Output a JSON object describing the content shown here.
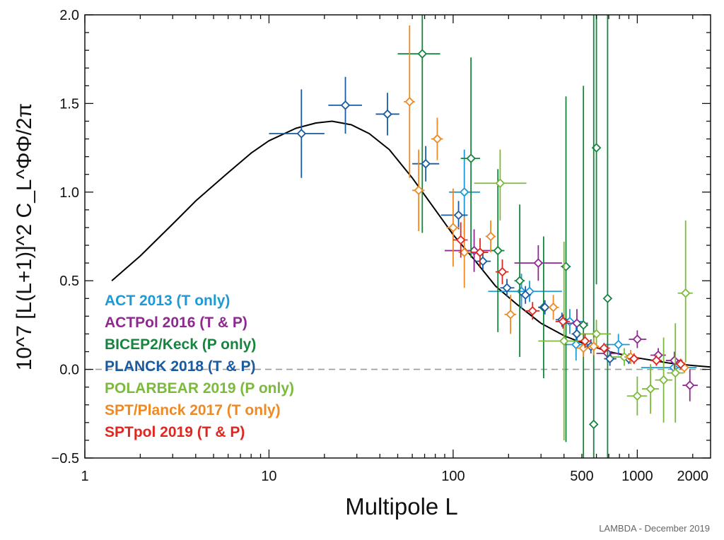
{
  "chart_data": {
    "type": "scatter",
    "title": "",
    "xlabel": "Multipole L",
    "ylabel": "10^7 [L(L+1)]^2 C_L^ΦΦ/2π",
    "xscale": "log",
    "xlim": [
      1,
      2500
    ],
    "ylim": [
      -0.5,
      2.0
    ],
    "x_ticks": [
      1,
      10,
      100,
      500,
      1000,
      2000
    ],
    "y_ticks": [
      -0.5,
      0.0,
      0.5,
      1.0,
      1.5,
      2.0
    ],
    "grid": false,
    "zero_line": "dashed gray at y=0",
    "legend_position": "lower-left",
    "credit": "LAMBDA - December 2019",
    "theory_curve": {
      "name": "",
      "color": "#000000",
      "x": [
        1.4,
        2,
        3,
        4,
        6,
        8,
        10,
        14,
        18,
        22,
        28,
        35,
        45,
        60,
        80,
        100,
        130,
        170,
        220,
        300,
        400,
        500,
        700,
        1000,
        1500,
        2000,
        2500
      ],
      "y": [
        0.5,
        0.64,
        0.82,
        0.95,
        1.11,
        1.22,
        1.29,
        1.36,
        1.39,
        1.4,
        1.38,
        1.33,
        1.24,
        1.08,
        0.9,
        0.76,
        0.62,
        0.47,
        0.37,
        0.26,
        0.19,
        0.15,
        0.1,
        0.065,
        0.035,
        0.022,
        0.013
      ]
    },
    "series": [
      {
        "name": "ACT 2013 (T only)",
        "color": "#1b9ad6",
        "points": [
          {
            "x": 115,
            "y": 1.0,
            "xlo": 95,
            "xhi": 140,
            "ylo": 0.76,
            "yhi": 1.24
          },
          {
            "x": 235,
            "y": 0.44,
            "xlo": 200,
            "xhi": 275,
            "ylo": 0.34,
            "yhi": 0.54
          },
          {
            "x": 260,
            "y": 0.44,
            "xlo": 155,
            "xhi": 390,
            "ylo": 0.38,
            "yhi": 0.5
          },
          {
            "x": 430,
            "y": 0.27,
            "xlo": 360,
            "xhi": 510,
            "ylo": 0.2,
            "yhi": 0.34
          },
          {
            "x": 465,
            "y": 0.14,
            "xlo": 400,
            "xhi": 540,
            "ylo": 0.05,
            "yhi": 0.25
          },
          {
            "x": 790,
            "y": 0.14,
            "xlo": 670,
            "xhi": 910,
            "ylo": 0.08,
            "yhi": 0.2
          },
          {
            "x": 1580,
            "y": 0.01,
            "xlo": 1050,
            "xhi": 2100,
            "ylo": -0.01,
            "yhi": 0.03
          }
        ]
      },
      {
        "name": "ACTPol 2016 (T & P)",
        "color": "#8e2a8f",
        "points": [
          {
            "x": 130,
            "y": 0.67,
            "xlo": 90,
            "xhi": 175,
            "ylo": 0.55,
            "yhi": 0.79
          },
          {
            "x": 290,
            "y": 0.6,
            "xlo": 215,
            "xhi": 390,
            "ylo": 0.5,
            "yhi": 0.7
          },
          {
            "x": 470,
            "y": 0.26,
            "xlo": 400,
            "xhi": 540,
            "ylo": 0.18,
            "yhi": 0.34
          },
          {
            "x": 690,
            "y": 0.09,
            "xlo": 600,
            "xhi": 800,
            "ylo": 0.04,
            "yhi": 0.14
          },
          {
            "x": 1000,
            "y": 0.17,
            "xlo": 900,
            "xhi": 1120,
            "ylo": 0.12,
            "yhi": 0.22
          },
          {
            "x": 1300,
            "y": 0.08,
            "xlo": 1180,
            "xhi": 1430,
            "ylo": 0.04,
            "yhi": 0.12
          },
          {
            "x": 1590,
            "y": 0.05,
            "xlo": 1430,
            "xhi": 1760,
            "ylo": 0.0,
            "yhi": 0.1
          },
          {
            "x": 1930,
            "y": -0.09,
            "xlo": 1760,
            "xhi": 2130,
            "ylo": -0.18,
            "yhi": 0.0
          }
        ]
      },
      {
        "name": "BICEP2/Keck (P only)",
        "color": "#17843f",
        "points": [
          {
            "x": 68,
            "y": 1.78,
            "xlo": 50,
            "xhi": 85,
            "ylo": 0.77,
            "yhi": 2.0
          },
          {
            "x": 125,
            "y": 1.19,
            "xlo": 110,
            "xhi": 140,
            "ylo": 0.63,
            "yhi": 1.76
          },
          {
            "x": 175,
            "y": 0.67,
            "xlo": 160,
            "xhi": 190,
            "ylo": 0.21,
            "yhi": 1.13
          },
          {
            "x": 230,
            "y": 0.5,
            "xlo": 215,
            "xhi": 245,
            "ylo": 0.07,
            "yhi": 0.93
          },
          {
            "x": 310,
            "y": 0.35,
            "xlo": 290,
            "xhi": 330,
            "ylo": -0.05,
            "yhi": 0.75
          },
          {
            "x": 410,
            "y": 0.58,
            "xlo": 385,
            "xhi": 435,
            "ylo": -0.41,
            "yhi": 1.54
          },
          {
            "x": 510,
            "y": 0.25,
            "xlo": 480,
            "xhi": 540,
            "ylo": -0.5,
            "yhi": 1.6
          },
          {
            "x": 600,
            "y": 1.25,
            "xlo": 580,
            "xhi": 620,
            "ylo": 0.48,
            "yhi": 2.0
          },
          {
            "x": 580,
            "y": -0.31,
            "xlo": 555,
            "xhi": 605,
            "ylo": -0.5,
            "yhi": 2.0
          },
          {
            "x": 690,
            "y": 0.4,
            "xlo": 660,
            "xhi": 720,
            "ylo": -0.5,
            "yhi": 2.0
          }
        ]
      },
      {
        "name": "PLANCK 2018 (T & P)",
        "color": "#1a5aa0",
        "points": [
          {
            "x": 15,
            "y": 1.33,
            "xlo": 10,
            "xhi": 20,
            "ylo": 1.08,
            "yhi": 1.58
          },
          {
            "x": 26,
            "y": 1.49,
            "xlo": 21,
            "xhi": 32,
            "ylo": 1.33,
            "yhi": 1.65
          },
          {
            "x": 44,
            "y": 1.44,
            "xlo": 38,
            "xhi": 51,
            "ylo": 1.32,
            "yhi": 1.56
          },
          {
            "x": 71,
            "y": 1.16,
            "xlo": 60,
            "xhi": 84,
            "ylo": 1.06,
            "yhi": 1.26
          },
          {
            "x": 107,
            "y": 0.87,
            "xlo": 86,
            "xhi": 120,
            "ylo": 0.79,
            "yhi": 0.95
          },
          {
            "x": 145,
            "y": 0.61,
            "xlo": 130,
            "xhi": 160,
            "ylo": 0.56,
            "yhi": 0.66
          },
          {
            "x": 196,
            "y": 0.46,
            "xlo": 180,
            "xhi": 215,
            "ylo": 0.41,
            "yhi": 0.51
          },
          {
            "x": 247,
            "y": 0.42,
            "xlo": 230,
            "xhi": 265,
            "ylo": 0.37,
            "yhi": 0.47
          },
          {
            "x": 315,
            "y": 0.35,
            "xlo": 290,
            "xhi": 340,
            "ylo": 0.31,
            "yhi": 0.39
          },
          {
            "x": 390,
            "y": 0.28,
            "xlo": 360,
            "xhi": 420,
            "ylo": 0.24,
            "yhi": 0.32
          },
          {
            "x": 470,
            "y": 0.2,
            "xlo": 440,
            "xhi": 500,
            "ylo": 0.16,
            "yhi": 0.24
          },
          {
            "x": 560,
            "y": 0.13,
            "xlo": 520,
            "xhi": 600,
            "ylo": 0.09,
            "yhi": 0.17
          },
          {
            "x": 710,
            "y": 0.06,
            "xlo": 660,
            "xhi": 770,
            "ylo": 0.02,
            "yhi": 0.1
          },
          {
            "x": 900,
            "y": 0.06,
            "xlo": 820,
            "xhi": 980,
            "ylo": 0.03,
            "yhi": 0.09
          }
        ]
      },
      {
        "name": "POLARBEAR 2019 (P only)",
        "color": "#7cba3d",
        "points": [
          {
            "x": 180,
            "y": 1.05,
            "xlo": 130,
            "xhi": 250,
            "ylo": 0.84,
            "yhi": 1.24
          },
          {
            "x": 400,
            "y": 0.16,
            "xlo": 290,
            "xhi": 530,
            "ylo": -0.4,
            "yhi": 0.72
          },
          {
            "x": 600,
            "y": 0.2,
            "xlo": 480,
            "xhi": 720,
            "ylo": 0.12,
            "yhi": 0.28
          },
          {
            "x": 850,
            "y": 0.07,
            "xlo": 720,
            "xhi": 960,
            "ylo": 0.02,
            "yhi": 0.12
          },
          {
            "x": 1000,
            "y": -0.15,
            "xlo": 880,
            "xhi": 1130,
            "ylo": -0.26,
            "yhi": -0.04
          },
          {
            "x": 1180,
            "y": -0.11,
            "xlo": 1060,
            "xhi": 1310,
            "ylo": -0.25,
            "yhi": 0.03
          },
          {
            "x": 1390,
            "y": -0.06,
            "xlo": 1250,
            "xhi": 1550,
            "ylo": -0.3,
            "yhi": 0.18
          },
          {
            "x": 1610,
            "y": -0.02,
            "xlo": 1450,
            "xhi": 1790,
            "ylo": -0.3,
            "yhi": 0.26
          },
          {
            "x": 1830,
            "y": 0.43,
            "xlo": 1660,
            "xhi": 2000,
            "ylo": 0.04,
            "yhi": 0.84
          }
        ]
      },
      {
        "name": "SPT/Planck  2017 (T only)",
        "color": "#ee8a25",
        "points": [
          {
            "x": 58,
            "y": 1.51,
            "xlo": 54,
            "xhi": 62,
            "ylo": 1.08,
            "yhi": 1.94
          },
          {
            "x": 82,
            "y": 1.3,
            "xlo": 76,
            "xhi": 88,
            "ylo": 1.18,
            "yhi": 1.42
          },
          {
            "x": 65,
            "y": 1.01,
            "xlo": 60,
            "xhi": 70,
            "ylo": 0.78,
            "yhi": 1.24
          },
          {
            "x": 100,
            "y": 0.8,
            "xlo": 92,
            "xhi": 108,
            "ylo": 0.58,
            "yhi": 1.02
          },
          {
            "x": 115,
            "y": 0.66,
            "xlo": 107,
            "xhi": 123,
            "ylo": 0.46,
            "yhi": 0.86
          },
          {
            "x": 160,
            "y": 0.75,
            "xlo": 150,
            "xhi": 170,
            "ylo": 0.66,
            "yhi": 0.84
          },
          {
            "x": 205,
            "y": 0.31,
            "xlo": 190,
            "xhi": 220,
            "ylo": 0.2,
            "yhi": 0.42
          },
          {
            "x": 350,
            "y": 0.35,
            "xlo": 330,
            "xhi": 375,
            "ylo": 0.28,
            "yhi": 0.42
          },
          {
            "x": 510,
            "y": 0.12,
            "xlo": 470,
            "xhi": 550,
            "ylo": 0.07,
            "yhi": 0.17
          },
          {
            "x": 580,
            "y": 0.13,
            "xlo": 540,
            "xhi": 620,
            "ylo": 0.08,
            "yhi": 0.18
          },
          {
            "x": 920,
            "y": 0.07,
            "xlo": 850,
            "xhi": 990,
            "ylo": 0.03,
            "yhi": 0.11
          },
          {
            "x": 1800,
            "y": 0.01,
            "xlo": 1700,
            "xhi": 1900,
            "ylo": -0.02,
            "yhi": 0.04
          }
        ]
      },
      {
        "name": "SPTpol 2019 (T & P)",
        "color": "#e0271f",
        "points": [
          {
            "x": 110,
            "y": 0.73,
            "xlo": 100,
            "xhi": 120,
            "ylo": 0.63,
            "yhi": 0.83
          },
          {
            "x": 140,
            "y": 0.66,
            "xlo": 125,
            "xhi": 155,
            "ylo": 0.58,
            "yhi": 0.74
          },
          {
            "x": 185,
            "y": 0.55,
            "xlo": 170,
            "xhi": 200,
            "ylo": 0.48,
            "yhi": 0.62
          },
          {
            "x": 270,
            "y": 0.33,
            "xlo": 245,
            "xhi": 295,
            "ylo": 0.28,
            "yhi": 0.38
          },
          {
            "x": 395,
            "y": 0.27,
            "xlo": 360,
            "xhi": 430,
            "ylo": 0.23,
            "yhi": 0.31
          },
          {
            "x": 520,
            "y": 0.16,
            "xlo": 480,
            "xhi": 560,
            "ylo": 0.12,
            "yhi": 0.2
          },
          {
            "x": 660,
            "y": 0.12,
            "xlo": 610,
            "xhi": 710,
            "ylo": 0.09,
            "yhi": 0.15
          },
          {
            "x": 960,
            "y": 0.06,
            "xlo": 890,
            "xhi": 1030,
            "ylo": 0.03,
            "yhi": 0.09
          },
          {
            "x": 1270,
            "y": 0.05,
            "xlo": 1180,
            "xhi": 1360,
            "ylo": 0.02,
            "yhi": 0.08
          },
          {
            "x": 1720,
            "y": 0.03,
            "xlo": 1610,
            "xhi": 1830,
            "ylo": 0.0,
            "yhi": 0.06
          }
        ]
      }
    ]
  }
}
